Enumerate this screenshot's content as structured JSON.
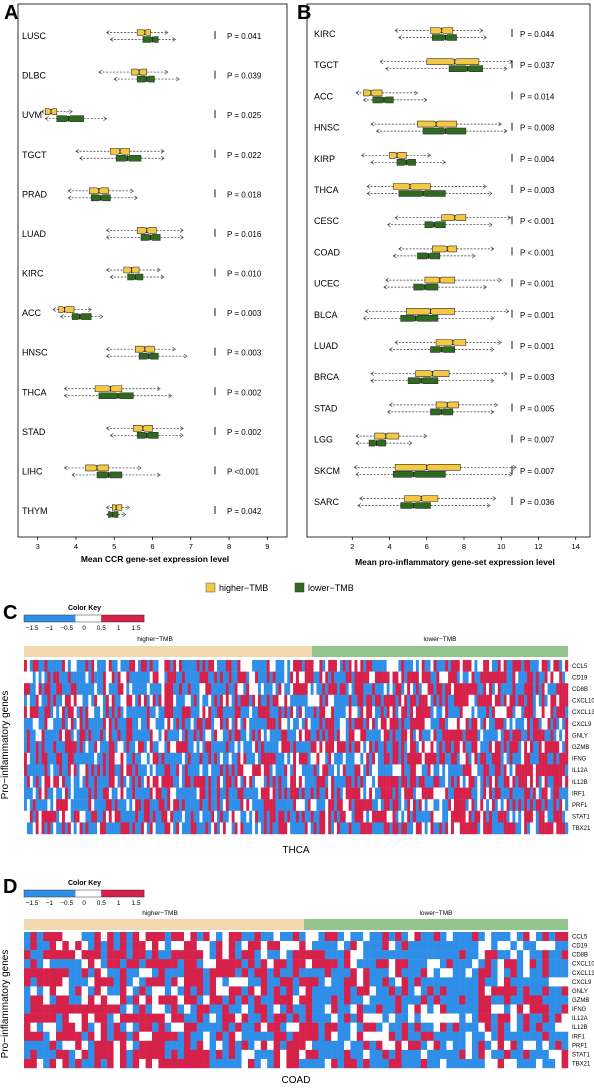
{
  "panels": {
    "A": {
      "letter": "A"
    },
    "B": {
      "letter": "B"
    },
    "C": {
      "letter": "C"
    },
    "D": {
      "letter": "D"
    }
  },
  "legend": {
    "higher": {
      "label": "higher−TMB",
      "color": "#f5c842"
    },
    "lower": {
      "label": "lower−TMB",
      "color": "#2e6b1f"
    }
  },
  "colors": {
    "higher_fill": "#f5c842",
    "lower_fill": "#2e6b1f",
    "heat_high": "#d6214a",
    "heat_low": "#2f8fe8",
    "heat_mid": "#ffffff",
    "band_higher": "#f3d9b0",
    "band_lower": "#93c48e"
  },
  "chart_data": [
    {
      "type": "boxplot",
      "panel": "A",
      "xlabel": "Mean CCR gene-set expression level",
      "xlim": [
        2.8,
        9.2
      ],
      "xticks": [
        3,
        4,
        5,
        6,
        7,
        8,
        9
      ],
      "groups": [
        {
          "name": "LUSC",
          "p": "P = 0.041",
          "higher": [
            4.8,
            5.6,
            5.8,
            5.95,
            6.4
          ],
          "lower": [
            4.9,
            5.75,
            6.0,
            6.15,
            6.6
          ]
        },
        {
          "name": "DLBC",
          "p": "P = 0.039",
          "higher": [
            4.6,
            5.45,
            5.65,
            5.85,
            6.4
          ],
          "lower": [
            5.0,
            5.6,
            5.85,
            6.05,
            6.7
          ]
        },
        {
          "name": "UVM",
          "p": "P = 0.025",
          "higher": [
            3.1,
            3.2,
            3.35,
            3.5,
            3.9
          ],
          "lower": [
            3.2,
            3.5,
            3.8,
            4.2,
            4.8
          ]
        },
        {
          "name": "TGCT",
          "p": "P = 0.022",
          "higher": [
            4.0,
            4.9,
            5.15,
            5.4,
            6.3
          ],
          "lower": [
            4.1,
            5.05,
            5.35,
            5.7,
            6.3
          ]
        },
        {
          "name": "PRAD",
          "p": "P = 0.018",
          "higher": [
            3.8,
            4.35,
            4.6,
            4.85,
            5.5
          ],
          "lower": [
            3.8,
            4.4,
            4.65,
            4.9,
            5.6
          ]
        },
        {
          "name": "LUAD",
          "p": "P = 0.016",
          "higher": [
            4.8,
            5.6,
            5.85,
            6.1,
            6.8
          ],
          "lower": [
            4.8,
            5.7,
            5.95,
            6.2,
            6.8
          ]
        },
        {
          "name": "KIRC",
          "p": "P = 0.010",
          "higher": [
            4.8,
            5.25,
            5.45,
            5.65,
            6.2
          ],
          "lower": [
            4.9,
            5.35,
            5.55,
            5.75,
            6.3
          ]
        },
        {
          "name": "ACC",
          "p": "P = 0.003",
          "higher": [
            3.4,
            3.55,
            3.7,
            3.95,
            4.4
          ],
          "lower": [
            3.6,
            3.9,
            4.1,
            4.4,
            4.7
          ]
        },
        {
          "name": "HNSC",
          "p": "P = 0.003",
          "higher": [
            4.8,
            5.55,
            5.8,
            6.05,
            6.6
          ],
          "lower": [
            4.8,
            5.65,
            5.9,
            6.15,
            6.9
          ]
        },
        {
          "name": "THCA",
          "p": "P = 0.002",
          "higher": [
            3.7,
            4.5,
            4.9,
            5.2,
            6.2
          ],
          "lower": [
            3.7,
            4.6,
            5.1,
            5.5,
            6.5
          ]
        },
        {
          "name": "STAD",
          "p": "P = 0.002",
          "higher": [
            4.8,
            5.5,
            5.75,
            6.0,
            6.8
          ],
          "lower": [
            4.9,
            5.6,
            5.85,
            6.15,
            6.8
          ]
        },
        {
          "name": "LIHC",
          "p": "P <0.001",
          "higher": [
            3.7,
            4.25,
            4.55,
            4.85,
            5.7
          ],
          "lower": [
            3.9,
            4.55,
            4.85,
            5.2,
            6.2
          ]
        },
        {
          "name": "THYM",
          "p": "P = 0.042",
          "higher": [
            4.8,
            4.95,
            5.05,
            5.2,
            5.4
          ],
          "lower": [
            4.8,
            4.85,
            4.95,
            5.1,
            5.3
          ]
        }
      ]
    },
    {
      "type": "boxplot",
      "panel": "B",
      "xlabel": "Mean pro-inflammatory gene-set expression level",
      "xlim": [
        1.5,
        14.5
      ],
      "xticks": [
        2,
        4,
        6,
        8,
        10,
        12,
        14
      ],
      "groups": [
        {
          "name": "KIRC",
          "p": "P = 0.044",
          "higher": [
            4.3,
            6.2,
            6.8,
            7.4,
            9.0
          ],
          "lower": [
            4.5,
            6.3,
            7.0,
            7.6,
            9.2
          ]
        },
        {
          "name": "TGCT",
          "p": "P = 0.037",
          "higher": [
            3.5,
            6.0,
            7.5,
            8.8,
            10.6
          ],
          "lower": [
            3.8,
            7.2,
            8.2,
            9.0,
            10.3
          ]
        },
        {
          "name": "ACC",
          "p": "P = 0.014",
          "higher": [
            2.2,
            2.6,
            3.0,
            3.6,
            5.5
          ],
          "lower": [
            2.6,
            3.1,
            3.7,
            4.2,
            6.0
          ]
        },
        {
          "name": "HNSC",
          "p": "P = 0.008",
          "higher": [
            3.0,
            5.5,
            6.5,
            7.6,
            10.0
          ],
          "lower": [
            3.3,
            5.8,
            7.0,
            8.1,
            10.3
          ]
        },
        {
          "name": "KIRP",
          "p": "P = 0.004",
          "higher": [
            2.5,
            4.0,
            4.4,
            4.9,
            6.2
          ],
          "lower": [
            3.0,
            4.4,
            4.9,
            5.4,
            7.0
          ]
        },
        {
          "name": "THCA",
          "p": "P = 0.003",
          "higher": [
            2.8,
            4.2,
            5.1,
            6.2,
            9.2
          ],
          "lower": [
            2.8,
            4.5,
            5.8,
            7.0,
            9.5
          ]
        },
        {
          "name": "CESC",
          "p": "P < 0.001",
          "higher": [
            4.3,
            6.8,
            7.5,
            8.1,
            10.5
          ],
          "lower": [
            3.9,
            5.9,
            6.4,
            7.0,
            9.5
          ]
        },
        {
          "name": "COAD",
          "p": "P < 0.001",
          "higher": [
            4.5,
            6.3,
            7.1,
            7.6,
            9.6
          ],
          "lower": [
            4.2,
            5.5,
            6.1,
            6.7,
            8.6
          ]
        },
        {
          "name": "UCEC",
          "p": "P = 0.001",
          "higher": [
            3.8,
            5.9,
            6.7,
            7.5,
            10.0
          ],
          "lower": [
            3.7,
            5.3,
            5.9,
            6.6,
            9.2
          ]
        },
        {
          "name": "BLCA",
          "p": "P = 0.001",
          "higher": [
            2.7,
            4.9,
            6.2,
            7.5,
            10.4
          ],
          "lower": [
            2.6,
            4.6,
            5.4,
            6.6,
            9.6
          ]
        },
        {
          "name": "LUAD",
          "p": "P = 0.001",
          "higher": [
            4.3,
            6.5,
            7.4,
            8.1,
            10.0
          ],
          "lower": [
            4.0,
            6.2,
            6.8,
            7.5,
            9.6
          ]
        },
        {
          "name": "BRCA",
          "p": "P = 0.003",
          "higher": [
            3.0,
            5.4,
            6.3,
            7.2,
            10.3
          ],
          "lower": [
            3.0,
            5.0,
            5.7,
            6.6,
            9.6
          ]
        },
        {
          "name": "STAD",
          "p": "P = 0.005",
          "higher": [
            4.0,
            6.5,
            7.1,
            7.7,
            9.8
          ],
          "lower": [
            3.9,
            6.2,
            6.8,
            7.4,
            9.6
          ]
        },
        {
          "name": "LGG",
          "p": "P = 0.007",
          "higher": [
            2.2,
            3.2,
            3.8,
            4.5,
            6.0
          ],
          "lower": [
            2.2,
            2.9,
            3.3,
            3.8,
            5.2
          ]
        },
        {
          "name": "SKCM",
          "p": "P = 0.007",
          "higher": [
            2.1,
            4.3,
            6.0,
            7.8,
            10.8
          ],
          "lower": [
            2.2,
            4.2,
            5.3,
            7.0,
            10.6
          ]
        },
        {
          "name": "SARC",
          "p": "P = 0.036",
          "higher": [
            2.4,
            4.8,
            5.7,
            6.6,
            9.7
          ],
          "lower": [
            2.3,
            4.6,
            5.3,
            6.2,
            9.4
          ]
        }
      ]
    },
    {
      "type": "heatmap",
      "panel": "C",
      "title": "THCA",
      "ylabel": "Pro−inflammatory genes",
      "group_labels": [
        "higher−TMB",
        "lower−TMB"
      ],
      "genes": [
        "CCL5",
        "CD19",
        "CD8B",
        "CXCL10",
        "CXCL13",
        "CXCL9",
        "GNLY",
        "GZMB",
        "IFNG",
        "IL12A",
        "IL12B",
        "IRF1",
        "PRF1",
        "STAT1",
        "TBX21"
      ],
      "n_columns": [
        100,
        86
      ],
      "colorkey_title": "Color Key",
      "colorkey_ticks": [
        "−1.5",
        "−1",
        "−0.5",
        "0",
        "0.5",
        "1",
        "1.5"
      ]
    },
    {
      "type": "heatmap",
      "panel": "D",
      "title": "COAD",
      "ylabel": "Pro−inflammatory genes",
      "group_labels": [
        "higher−TMB",
        "lower−TMB"
      ],
      "genes": [
        "CCL5",
        "CD19",
        "CD8B",
        "CXCL10",
        "CXCL13",
        "CXCL9",
        "GNLY",
        "GZMB",
        "IFNG",
        "IL12A",
        "IL12B",
        "IRF1",
        "PRF1",
        "STAT1",
        "TBX21"
      ],
      "n_columns": [
        45,
        40
      ],
      "colorkey_title": "Color Key",
      "colorkey_ticks": [
        "−1.5",
        "−1",
        "−0.5",
        "0",
        "0.5",
        "1",
        "1.5"
      ]
    }
  ]
}
